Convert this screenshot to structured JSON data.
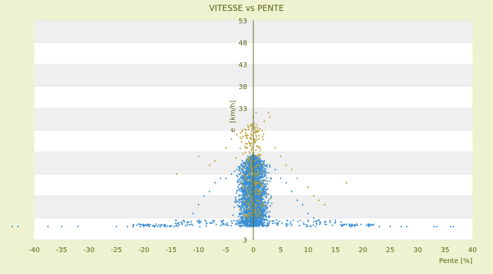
{
  "chart_data": {
    "type": "scatter",
    "title": "VITESSE vs PENTE",
    "xlabel": "Pente [%]",
    "ylabel": "[km/h]",
    "ylabel_partial": "e",
    "xlim": [
      -40,
      40
    ],
    "ylim": [
      3,
      53
    ],
    "x_ticks": [
      -40,
      -35,
      -30,
      -25,
      -20,
      -15,
      -10,
      -5,
      0,
      5,
      10,
      15,
      20,
      25,
      30,
      35,
      40
    ],
    "y_ticks": [
      3,
      8,
      13,
      18,
      23,
      28,
      33,
      38,
      43,
      48,
      53
    ],
    "y_tick_labels_shown": [
      "3",
      "33",
      "38",
      "43",
      "48",
      "53"
    ],
    "grid": "horizontal alternating bands",
    "legend": "none",
    "colors": {
      "background": "#eef2d0",
      "plot_band_light": "#ffffff",
      "plot_band_dark": "#efefef",
      "axis": "#5a6010",
      "text": "#5a6010",
      "series_blue": "#3b8fd4",
      "series_olive": "#b8a030"
    },
    "series": [
      {
        "color": "#3b8fd4",
        "points_sample": [
          [
            -44,
            6
          ],
          [
            -43,
            6
          ],
          [
            -37.5,
            6
          ],
          [
            -35,
            6
          ],
          [
            -32,
            6
          ],
          [
            -25,
            6
          ],
          [
            -23,
            6
          ],
          [
            -22,
            6
          ],
          [
            -20,
            6
          ],
          [
            -19,
            6
          ],
          [
            -18,
            6
          ],
          [
            -17,
            6
          ],
          [
            -16,
            6
          ],
          [
            -15,
            6.2
          ],
          [
            -14,
            6.3
          ],
          [
            -13,
            6.5
          ],
          [
            -12,
            7
          ],
          [
            -11,
            9
          ],
          [
            -10,
            11
          ],
          [
            -9,
            13
          ],
          [
            -8,
            14
          ],
          [
            -7,
            16
          ],
          [
            -6,
            17
          ],
          [
            -5,
            17
          ],
          [
            -4,
            18
          ],
          [
            -3,
            19
          ],
          [
            -2,
            21
          ],
          [
            -1,
            22
          ],
          [
            0,
            22.5
          ],
          [
            1,
            22
          ],
          [
            2,
            21
          ],
          [
            3,
            20
          ],
          [
            4,
            19
          ],
          [
            5,
            17
          ],
          [
            6,
            16
          ],
          [
            7,
            14
          ],
          [
            8,
            12
          ],
          [
            9,
            11
          ],
          [
            10,
            9
          ],
          [
            11,
            8
          ],
          [
            12,
            7.5
          ],
          [
            13,
            7
          ],
          [
            14,
            7
          ],
          [
            15,
            7
          ],
          [
            16,
            7
          ],
          [
            17,
            6.5
          ],
          [
            18,
            6.5
          ],
          [
            19,
            6.3
          ],
          [
            21,
            6.2
          ],
          [
            23,
            6
          ],
          [
            25,
            6
          ],
          [
            27,
            6
          ],
          [
            28,
            6
          ],
          [
            33,
            6
          ],
          [
            33.5,
            6
          ],
          [
            36,
            6
          ],
          [
            36.5,
            6
          ]
        ]
      },
      {
        "color": "#b8a030",
        "points_sample": [
          [
            -14,
            18
          ],
          [
            -10,
            22
          ],
          [
            -8,
            20
          ],
          [
            -7,
            21
          ],
          [
            -5,
            24
          ],
          [
            -4,
            26
          ],
          [
            -3,
            27
          ],
          [
            -2,
            28
          ],
          [
            -1,
            29
          ],
          [
            0,
            31
          ],
          [
            0.5,
            32
          ],
          [
            2,
            30
          ],
          [
            2.8,
            32
          ],
          [
            3,
            31
          ],
          [
            4,
            24
          ],
          [
            5,
            22
          ],
          [
            6,
            20
          ],
          [
            7,
            19
          ],
          [
            8,
            17
          ],
          [
            10,
            15
          ],
          [
            11,
            13
          ],
          [
            12,
            12
          ],
          [
            13,
            11
          ],
          [
            17,
            16
          ]
        ]
      }
    ]
  }
}
